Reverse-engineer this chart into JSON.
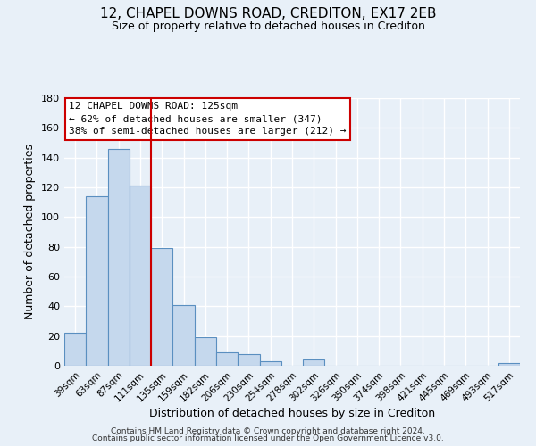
{
  "title": "12, CHAPEL DOWNS ROAD, CREDITON, EX17 2EB",
  "subtitle": "Size of property relative to detached houses in Crediton",
  "xlabel": "Distribution of detached houses by size in Crediton",
  "ylabel": "Number of detached properties",
  "bar_labels": [
    "39sqm",
    "63sqm",
    "87sqm",
    "111sqm",
    "135sqm",
    "159sqm",
    "182sqm",
    "206sqm",
    "230sqm",
    "254sqm",
    "278sqm",
    "302sqm",
    "326sqm",
    "350sqm",
    "374sqm",
    "398sqm",
    "421sqm",
    "445sqm",
    "469sqm",
    "493sqm",
    "517sqm"
  ],
  "bar_values": [
    22,
    114,
    146,
    121,
    79,
    41,
    19,
    9,
    8,
    3,
    0,
    4,
    0,
    0,
    0,
    0,
    0,
    0,
    0,
    0,
    2
  ],
  "bar_color": "#c5d8ed",
  "bar_edge_color": "#5a8fc0",
  "vline_color": "#cc0000",
  "vline_index": 3.5,
  "annotation_box_text": "12 CHAPEL DOWNS ROAD: 125sqm\n← 62% of detached houses are smaller (347)\n38% of semi-detached houses are larger (212) →",
  "annotation_box_facecolor": "white",
  "annotation_box_edgecolor": "#cc0000",
  "ylim": [
    0,
    180
  ],
  "yticks": [
    0,
    20,
    40,
    60,
    80,
    100,
    120,
    140,
    160,
    180
  ],
  "bg_color": "#e8f0f8",
  "grid_color": "white",
  "footer_line1": "Contains HM Land Registry data © Crown copyright and database right 2024.",
  "footer_line2": "Contains public sector information licensed under the Open Government Licence v3.0."
}
